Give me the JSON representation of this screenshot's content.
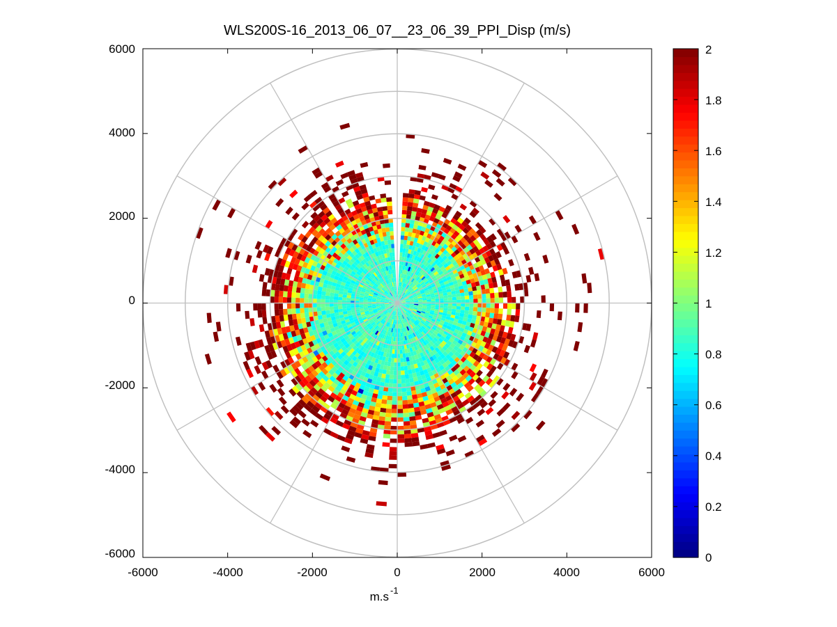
{
  "chart_data": {
    "type": "heatmap",
    "subtype": "polar-ppi-scan",
    "title": "WLS200S-16_2013_06_07__23_06_39_PPI_Disp (m/s)",
    "xlabel": "m.s",
    "xlabel_superscript": "-1",
    "ylabel": "",
    "xlim": [
      -6000,
      6000
    ],
    "ylim": [
      -6000,
      6000
    ],
    "x_ticks": [
      -6000,
      -4000,
      -2000,
      0,
      2000,
      4000,
      6000
    ],
    "y_ticks": [
      -6000,
      -4000,
      -2000,
      0,
      2000,
      4000,
      6000
    ],
    "x_tick_labels": [
      "-6000",
      "-4000",
      "-2000",
      "0",
      "2000",
      "4000",
      "6000"
    ],
    "y_tick_labels": [
      "-6000",
      "-4000",
      "-2000",
      "0",
      "2000",
      "4000",
      "6000"
    ],
    "polar_grid": {
      "range_rings": [
        1000,
        2000,
        3000,
        4000,
        5000,
        6000
      ],
      "spoke_angles_deg": [
        0,
        30,
        60,
        90,
        120,
        150,
        180,
        210,
        240,
        270,
        300,
        330
      ]
    },
    "colorbar": {
      "colormap": "jet",
      "clim": [
        0,
        2
      ],
      "ticks": [
        0,
        0.2,
        0.4,
        0.6,
        0.8,
        1,
        1.2,
        1.4,
        1.6,
        1.8,
        2
      ],
      "tick_labels": [
        "0",
        "0.2",
        "0.4",
        "0.6",
        "0.8",
        "1",
        "1.2",
        "1.4",
        "1.6",
        "1.8",
        "2"
      ]
    },
    "data_description": {
      "gate_spacing_m": 100,
      "azimuth_step_deg": 3,
      "gap_azimuth_deg": [
        -4,
        4
      ],
      "zones": [
        {
          "range_m": [
            0,
            1800
          ],
          "typical_value": 0.9
        },
        {
          "range_m": [
            1800,
            2400
          ],
          "typical_value": 1.1
        },
        {
          "range_m": [
            2400,
            3000
          ],
          "typical_value": 1.6
        },
        {
          "range_m": [
            3000,
            5100
          ],
          "typical_value": 2.0
        }
      ]
    }
  }
}
